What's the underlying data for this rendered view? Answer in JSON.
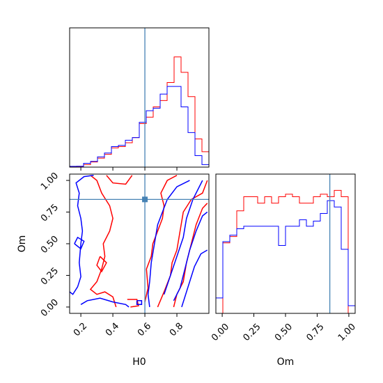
{
  "chart_data": {
    "type": "corner",
    "parameters": [
      "H0",
      "Om"
    ],
    "truth": {
      "H0": 0.6,
      "Om": 0.85
    },
    "truth_color": "#4682b4",
    "series_colors": [
      "#ff0000",
      "#0000ff"
    ],
    "axes": {
      "H0": {
        "range": [
          0.13,
          1.0
        ],
        "ticks": [
          0.2,
          0.4,
          0.6,
          0.8
        ],
        "tick_labels": [
          "0.2",
          "0.4",
          "0.6",
          "0.8"
        ]
      },
      "Om": {
        "range": [
          -0.05,
          1.05
        ],
        "ticks": [
          0.0,
          0.25,
          0.5,
          0.75,
          1.0
        ],
        "tick_labels": [
          "0.00",
          "0.25",
          "0.50",
          "0.75",
          "1.00"
        ]
      }
    },
    "hist_H0": {
      "bin_edges": [
        0.13,
        0.1735,
        0.217,
        0.2605,
        0.304,
        0.3475,
        0.391,
        0.4345,
        0.478,
        0.5215,
        0.565,
        0.6085,
        0.652,
        0.6955,
        0.739,
        0.7825,
        0.826,
        0.8695,
        0.913,
        0.9565,
        1.0
      ],
      "series": [
        {
          "color": "#ff0000",
          "counts": [
            0.005,
            0.006,
            0.02,
            0.04,
            0.07,
            0.1,
            0.15,
            0.16,
            0.19,
            0.23,
            0.34,
            0.39,
            0.47,
            0.52,
            0.66,
            0.86,
            0.74,
            0.55,
            0.22,
            0.12
          ]
        },
        {
          "color": "#0000ff",
          "counts": [
            0.006,
            0.007,
            0.03,
            0.045,
            0.08,
            0.11,
            0.16,
            0.17,
            0.21,
            0.23,
            0.35,
            0.44,
            0.46,
            0.57,
            0.63,
            0.63,
            0.47,
            0.27,
            0.09,
            0.02
          ]
        }
      ]
    },
    "hist_Om": {
      "bin_edges": [
        -0.05,
        0.005,
        0.06,
        0.115,
        0.17,
        0.225,
        0.28,
        0.335,
        0.39,
        0.445,
        0.5,
        0.555,
        0.61,
        0.665,
        0.72,
        0.775,
        0.83,
        0.885,
        0.94,
        0.995,
        1.05
      ],
      "series": [
        {
          "color": "#ff0000",
          "counts": [
            0.0,
            0.55,
            0.6,
            0.8,
            0.91,
            0.91,
            0.86,
            0.91,
            0.86,
            0.91,
            0.93,
            0.91,
            0.86,
            0.86,
            0.91,
            0.93,
            0.91,
            0.96,
            0.91,
            0.0
          ]
        },
        {
          "color": "#0000ff",
          "counts": [
            0.12,
            0.56,
            0.61,
            0.66,
            0.68,
            0.68,
            0.68,
            0.68,
            0.68,
            0.53,
            0.68,
            0.68,
            0.73,
            0.68,
            0.72,
            0.78,
            0.88,
            0.83,
            0.5,
            0.06
          ]
        }
      ]
    },
    "contours": [
      {
        "color": "#ff0000",
        "paths": [
          [
            [
              0.42,
              0.0
            ],
            [
              0.4,
              0.08
            ],
            [
              0.35,
              0.12
            ],
            [
              0.3,
              0.1
            ],
            [
              0.26,
              0.14
            ],
            [
              0.3,
              0.2
            ],
            [
              0.33,
              0.3
            ],
            [
              0.35,
              0.4
            ],
            [
              0.34,
              0.5
            ],
            [
              0.38,
              0.6
            ],
            [
              0.4,
              0.7
            ],
            [
              0.38,
              0.8
            ],
            [
              0.33,
              0.9
            ],
            [
              0.3,
              1.0
            ],
            [
              0.26,
              1.04
            ]
          ],
          [
            [
              0.36,
              1.04
            ],
            [
              0.4,
              0.98
            ],
            [
              0.48,
              0.97
            ],
            [
              0.52,
              1.04
            ]
          ],
          [
            [
              0.32,
              0.4
            ],
            [
              0.36,
              0.35
            ],
            [
              0.33,
              0.28
            ],
            [
              0.3,
              0.33
            ],
            [
              0.32,
              0.4
            ]
          ],
          [
            [
              0.49,
              0.06
            ],
            [
              0.55,
              0.06
            ],
            [
              0.56,
              0.01
            ],
            [
              0.51,
              0.0
            ]
          ],
          [
            [
              0.6,
              0.04
            ],
            [
              0.62,
              0.15
            ],
            [
              0.61,
              0.3
            ],
            [
              0.64,
              0.4
            ],
            [
              0.65,
              0.5
            ],
            [
              0.68,
              0.6
            ],
            [
              0.71,
              0.7
            ],
            [
              0.72,
              0.8
            ],
            [
              0.7,
              0.9
            ],
            [
              0.74,
              1.0
            ],
            [
              0.8,
              1.04
            ]
          ],
          [
            [
              0.68,
              0.0
            ],
            [
              0.72,
              0.12
            ],
            [
              0.76,
              0.25
            ],
            [
              0.77,
              0.35
            ],
            [
              0.8,
              0.45
            ],
            [
              0.82,
              0.6
            ],
            [
              0.84,
              0.75
            ],
            [
              0.89,
              0.85
            ],
            [
              0.96,
              0.9
            ],
            [
              0.99,
              1.0
            ]
          ],
          [
            [
              0.78,
              0.0
            ],
            [
              0.8,
              0.1
            ],
            [
              0.84,
              0.2
            ],
            [
              0.86,
              0.35
            ],
            [
              0.89,
              0.5
            ],
            [
              0.92,
              0.65
            ],
            [
              0.96,
              0.78
            ],
            [
              0.99,
              0.82
            ]
          ]
        ]
      },
      {
        "color": "#0000ff",
        "paths": [
          [
            [
              0.13,
              0.12
            ],
            [
              0.15,
              0.1
            ],
            [
              0.18,
              0.16
            ],
            [
              0.2,
              0.24
            ],
            [
              0.19,
              0.35
            ],
            [
              0.2,
              0.5
            ],
            [
              0.21,
              0.6
            ],
            [
              0.2,
              0.7
            ],
            [
              0.18,
              0.8
            ],
            [
              0.19,
              0.9
            ],
            [
              0.17,
              0.98
            ],
            [
              0.22,
              1.03
            ],
            [
              0.28,
              1.04
            ]
          ],
          [
            [
              0.16,
              0.5
            ],
            [
              0.2,
              0.46
            ],
            [
              0.22,
              0.52
            ],
            [
              0.18,
              0.55
            ],
            [
              0.16,
              0.5
            ]
          ],
          [
            [
              0.2,
              0.02
            ],
            [
              0.24,
              0.05
            ],
            [
              0.32,
              0.07
            ],
            [
              0.4,
              0.04
            ],
            [
              0.48,
              0.02
            ],
            [
              0.5,
              0.0
            ]
          ],
          [
            [
              0.55,
              0.05
            ],
            [
              0.58,
              0.05
            ],
            [
              0.58,
              0.02
            ],
            [
              0.55,
              0.02
            ],
            [
              0.55,
              0.05
            ]
          ],
          [
            [
              0.63,
              0.0
            ],
            [
              0.62,
              0.1
            ],
            [
              0.63,
              0.2
            ],
            [
              0.64,
              0.35
            ],
            [
              0.66,
              0.5
            ],
            [
              0.68,
              0.65
            ],
            [
              0.71,
              0.75
            ],
            [
              0.74,
              0.85
            ],
            [
              0.8,
              0.95
            ],
            [
              0.88,
              1.0
            ]
          ],
          [
            [
              0.72,
              0.1
            ],
            [
              0.76,
              0.25
            ],
            [
              0.8,
              0.4
            ],
            [
              0.84,
              0.55
            ],
            [
              0.86,
              0.7
            ],
            [
              0.9,
              0.85
            ],
            [
              0.96,
              1.0
            ]
          ],
          [
            [
              0.78,
              0.05
            ],
            [
              0.82,
              0.15
            ],
            [
              0.85,
              0.3
            ],
            [
              0.88,
              0.45
            ],
            [
              0.92,
              0.6
            ],
            [
              0.96,
              0.72
            ],
            [
              0.99,
              0.75
            ]
          ],
          [
            [
              0.83,
              0.0
            ],
            [
              0.85,
              0.08
            ],
            [
              0.88,
              0.2
            ],
            [
              0.91,
              0.32
            ],
            [
              0.95,
              0.42
            ],
            [
              0.99,
              0.45
            ]
          ]
        ]
      }
    ]
  }
}
